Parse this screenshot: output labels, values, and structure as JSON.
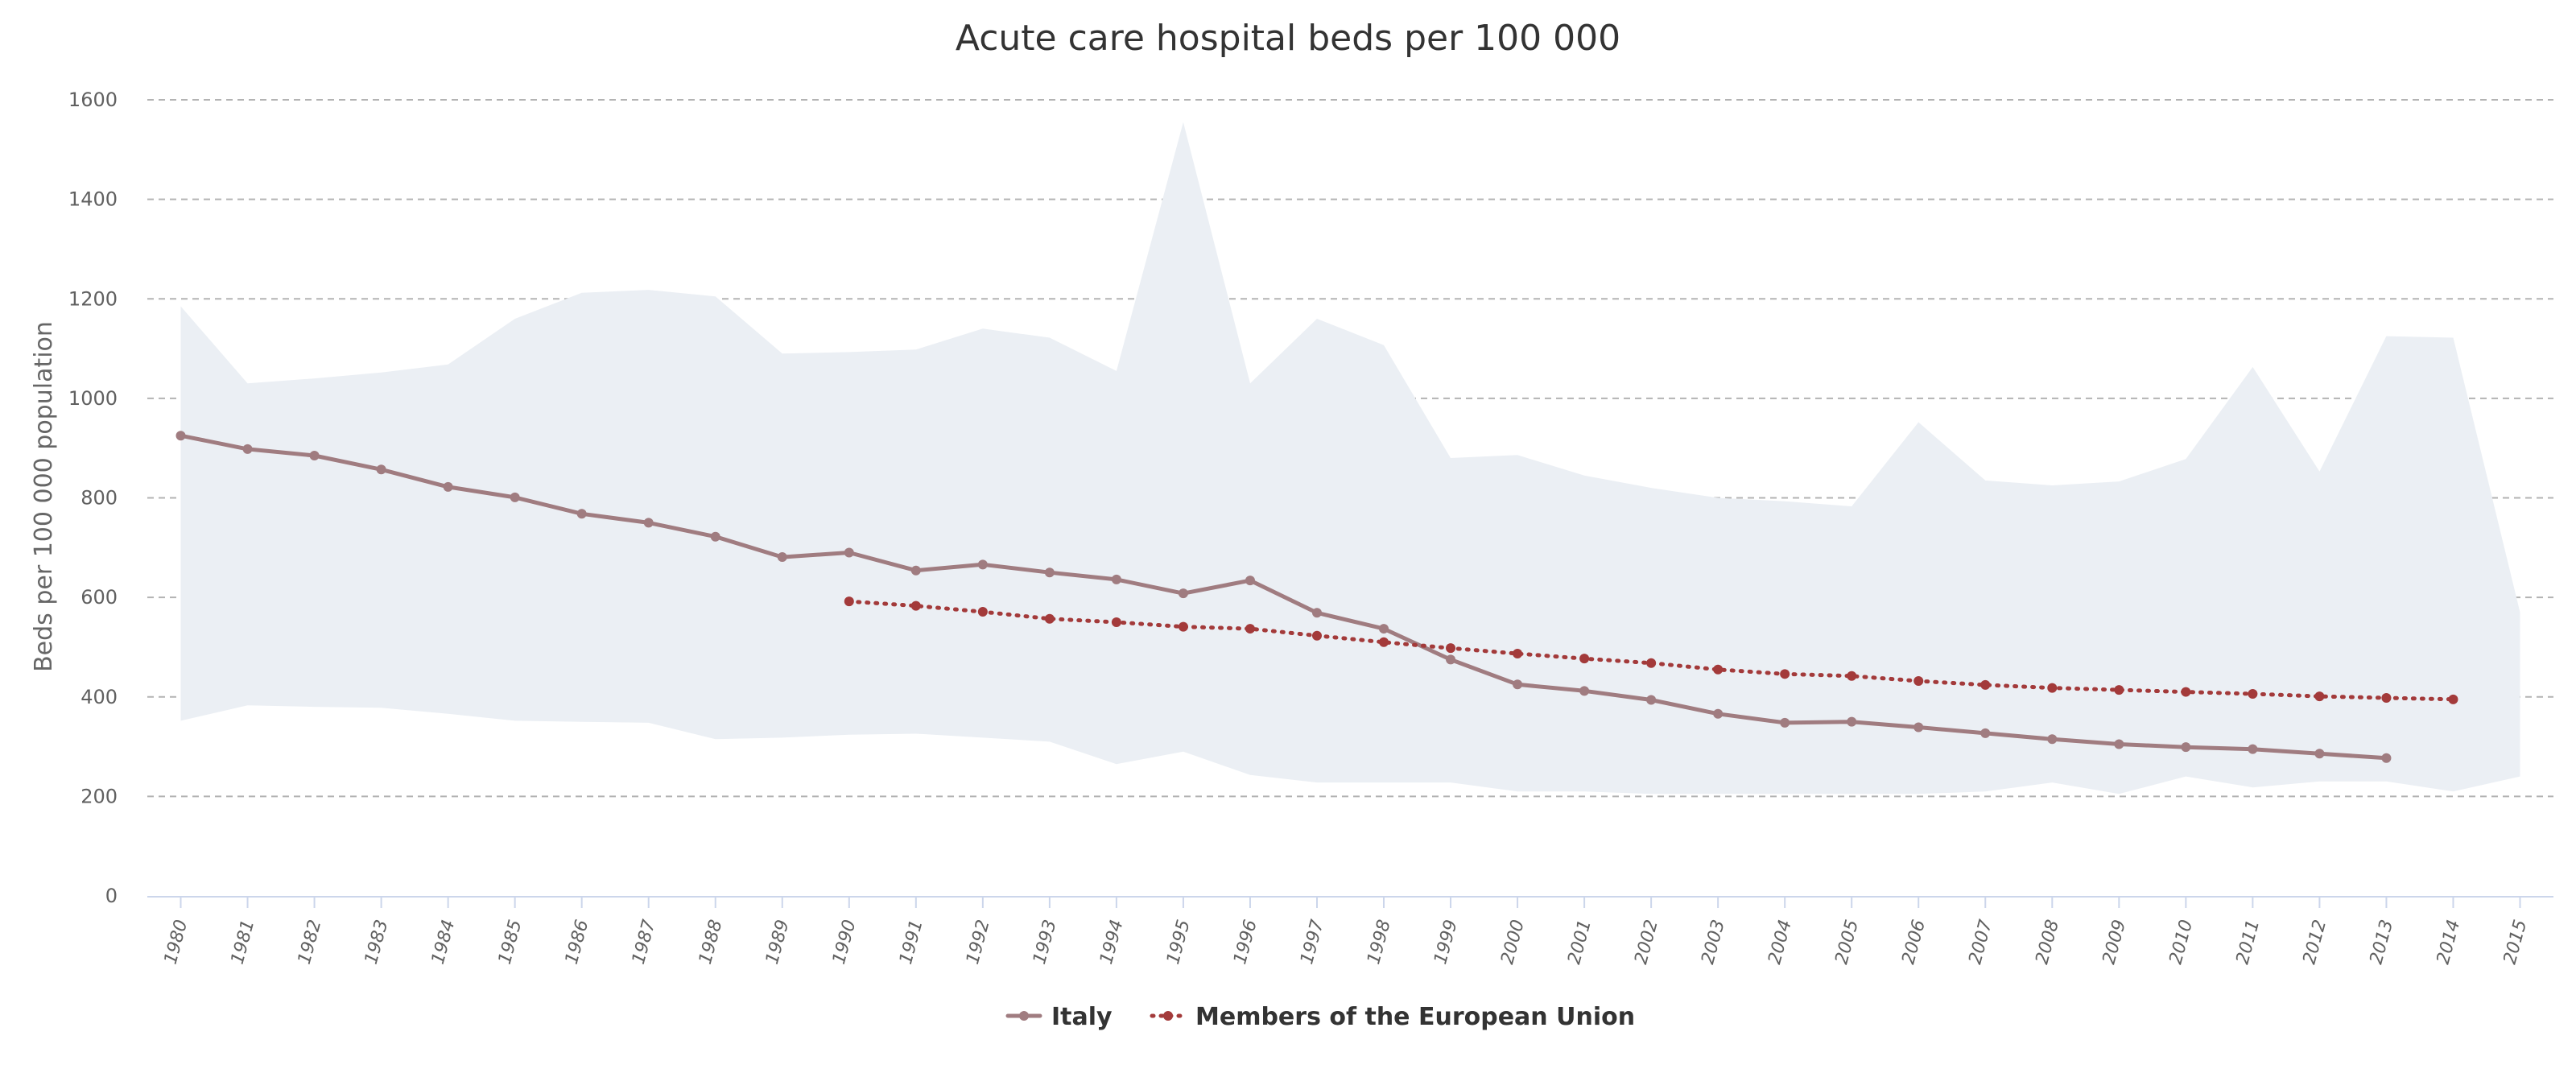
{
  "chart_data": {
    "type": "line",
    "title": "Acute care hospital beds per 100 000",
    "ylabel": "Beds per 100 000 population",
    "xlabel": "",
    "ylim": [
      0,
      1600
    ],
    "yticks": [
      0,
      200,
      400,
      600,
      800,
      1000,
      1200,
      1400,
      1600
    ],
    "x": [
      1980,
      1981,
      1982,
      1983,
      1984,
      1985,
      1986,
      1987,
      1988,
      1989,
      1990,
      1991,
      1992,
      1993,
      1994,
      1995,
      1996,
      1997,
      1998,
      1999,
      2000,
      2001,
      2002,
      2003,
      2004,
      2005,
      2006,
      2007,
      2008,
      2009,
      2010,
      2011,
      2012,
      2013,
      2014,
      2015
    ],
    "grid": true,
    "legend_position": "bottom-center",
    "series": [
      {
        "name": "Italy",
        "style": "solid",
        "color": "#a07c80",
        "values": [
          925,
          898,
          885,
          857,
          822,
          801,
          768,
          750,
          722,
          681,
          690,
          654,
          666,
          650,
          636,
          608,
          634,
          569,
          537,
          475,
          425,
          412,
          394,
          366,
          348,
          350,
          339,
          327,
          315,
          305,
          299,
          295,
          286,
          277,
          null,
          null
        ]
      },
      {
        "name": "Members of the European Union",
        "style": "dotted",
        "color": "#a33a3a",
        "values": [
          null,
          null,
          null,
          null,
          null,
          null,
          null,
          null,
          null,
          null,
          592,
          583,
          571,
          557,
          550,
          541,
          537,
          523,
          510,
          498,
          487,
          477,
          468,
          455,
          446,
          442,
          432,
          424,
          418,
          414,
          410,
          406,
          401,
          398,
          395,
          null
        ]
      }
    ],
    "range_band": {
      "color": "#ebeff4",
      "low": [
        352,
        383,
        380,
        378,
        366,
        352,
        350,
        348,
        315,
        318,
        324,
        326,
        318,
        310,
        265,
        290,
        243,
        228,
        228,
        228,
        210,
        210,
        205,
        205,
        205,
        205,
        205,
        210,
        228,
        205,
        240,
        218,
        230,
        230,
        210,
        240
      ],
      "high": [
        1185,
        1030,
        1040,
        1052,
        1068,
        1160,
        1212,
        1218,
        1205,
        1090,
        1093,
        1098,
        1140,
        1122,
        1055,
        1555,
        1030,
        1160,
        1107,
        880,
        886,
        845,
        820,
        800,
        793,
        783,
        952,
        835,
        825,
        833,
        878,
        1063,
        853,
        1125,
        1122,
        570
      ]
    }
  }
}
